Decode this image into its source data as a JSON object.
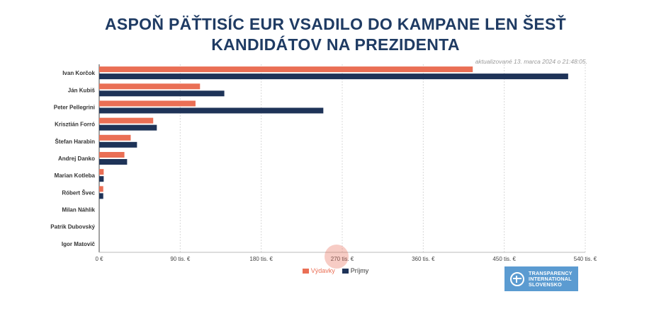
{
  "title_line1": "ASPOŇ PÄŤTISÍC EUR VSADILO DO KAMPANE LEN ŠESŤ",
  "title_line2": "KANDIDÁTOV NA PREZIDENTA",
  "updated": "aktualizované 13. marca 2024 o 21:48:05.",
  "logo_lines": [
    "TRANSPARENCY",
    "INTERNATIONAL",
    "SLOVENSKO"
  ],
  "colors": {
    "vydavky": "#ea6f55",
    "prijmy": "#1e3358",
    "title": "#1f3b63"
  },
  "chart_data": {
    "type": "bar",
    "orientation": "horizontal",
    "categories": [
      "Ivan Korčok",
      "Ján Kubiš",
      "Peter Pellegrini",
      "Krisztián Forró",
      "Štefan Harabin",
      "Andrej Danko",
      "Marian Kotleba",
      "Róbert Švec",
      "Milan Náhlik",
      "Patrik Dubovský",
      "Igor Matovič"
    ],
    "series": [
      {
        "name": "Výdavky",
        "values": [
          415000,
          112000,
          107000,
          60000,
          35000,
          28000,
          5000,
          4500,
          0,
          0,
          0
        ]
      },
      {
        "name": "Príjmy",
        "values": [
          521000,
          139000,
          249000,
          64000,
          42000,
          31000,
          5000,
          4500,
          0,
          0,
          0
        ]
      }
    ],
    "xlim": [
      0,
      540000
    ],
    "ticks": [
      0,
      90000,
      180000,
      270000,
      360000,
      450000,
      540000
    ],
    "tick_labels": [
      "0 €",
      "90 tis. €",
      "180 tis. €",
      "270 tis. €",
      "360 tis. €",
      "450 tis. €",
      "540 tis. €"
    ],
    "grid": true,
    "legend_position": "bottom-center"
  }
}
